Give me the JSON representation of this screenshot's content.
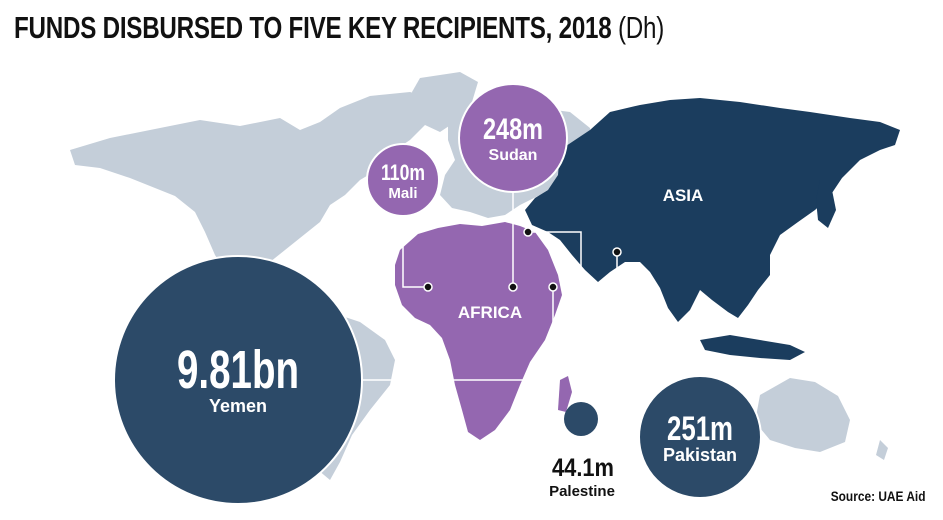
{
  "title": "FUNDS DISBURSED TO FIVE KEY RECIPIENTS, 2018",
  "title_unit": "(Dh)",
  "regions": {
    "asia": "ASIA",
    "africa": "AFRICA"
  },
  "recipients": [
    {
      "id": "yemen",
      "name": "Yemen",
      "amount": "9.81bn",
      "color": "#2c4a68"
    },
    {
      "id": "mali",
      "name": "Mali",
      "amount": "110m",
      "color": "#9467b0"
    },
    {
      "id": "sudan",
      "name": "Sudan",
      "amount": "248m",
      "color": "#9467b0"
    },
    {
      "id": "palestine",
      "name": "Palestine",
      "amount": "44.1m",
      "color": "#2c4a68"
    },
    {
      "id": "pakistan",
      "name": "Pakistan",
      "amount": "251m",
      "color": "#2c4a68"
    }
  ],
  "colors": {
    "land": "#c4ced9",
    "asia": "#1b3d5e",
    "africa": "#9467b0",
    "bubble_navy": "#2c4a68",
    "bubble_purple": "#9467b0"
  },
  "source": "Source: UAE Aid"
}
